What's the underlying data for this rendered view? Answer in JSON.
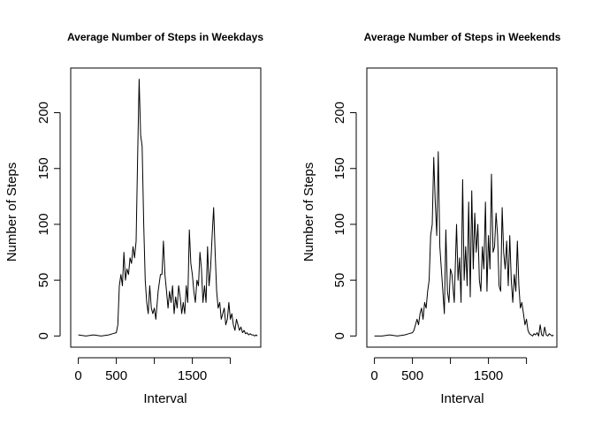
{
  "chart_data": [
    {
      "type": "line",
      "title": "Average Number of Steps in Weekdays",
      "xlabel": "Interval",
      "ylabel": "Number of Steps",
      "xlim": [
        -100,
        2400
      ],
      "ylim": [
        -10,
        240
      ],
      "xticks": [
        0,
        500,
        1500
      ],
      "yticks": [
        0,
        50,
        100,
        150,
        200
      ],
      "x": [
        0,
        100,
        200,
        300,
        400,
        450,
        500,
        520,
        540,
        560,
        580,
        600,
        620,
        640,
        660,
        680,
        700,
        720,
        740,
        760,
        780,
        800,
        820,
        840,
        860,
        880,
        900,
        920,
        940,
        960,
        980,
        1000,
        1020,
        1050,
        1080,
        1100,
        1120,
        1140,
        1160,
        1180,
        1200,
        1220,
        1240,
        1260,
        1280,
        1300,
        1320,
        1340,
        1360,
        1380,
        1400,
        1420,
        1440,
        1460,
        1480,
        1500,
        1520,
        1540,
        1560,
        1580,
        1600,
        1620,
        1640,
        1660,
        1680,
        1700,
        1720,
        1740,
        1760,
        1780,
        1800,
        1820,
        1840,
        1860,
        1880,
        1900,
        1920,
        1940,
        1960,
        1980,
        2000,
        2020,
        2040,
        2060,
        2080,
        2100,
        2120,
        2140,
        2160,
        2180,
        2200,
        2220,
        2240,
        2260,
        2280,
        2300,
        2320,
        2340,
        2355
      ],
      "y": [
        1,
        0,
        1,
        0,
        1,
        2,
        3,
        10,
        45,
        55,
        45,
        75,
        50,
        60,
        55,
        70,
        65,
        80,
        70,
        85,
        160,
        230,
        180,
        170,
        100,
        50,
        30,
        20,
        45,
        25,
        20,
        25,
        15,
        40,
        55,
        55,
        85,
        55,
        40,
        25,
        40,
        30,
        45,
        20,
        35,
        25,
        45,
        35,
        20,
        30,
        20,
        45,
        30,
        95,
        65,
        55,
        40,
        30,
        50,
        45,
        75,
        60,
        30,
        45,
        30,
        80,
        45,
        60,
        90,
        115,
        75,
        40,
        25,
        30,
        15,
        20,
        25,
        10,
        15,
        30,
        15,
        20,
        10,
        5,
        15,
        10,
        5,
        8,
        3,
        5,
        2,
        3,
        1,
        2,
        1,
        1,
        0,
        1,
        0
      ]
    },
    {
      "type": "line",
      "title": "Average Number of Steps in Weekends",
      "xlabel": "Interval",
      "ylabel": "Number of Steps",
      "xlim": [
        -100,
        2400
      ],
      "ylim": [
        -10,
        240
      ],
      "xticks": [
        0,
        500,
        1500
      ],
      "yticks": [
        0,
        50,
        100,
        150,
        200
      ],
      "x": [
        0,
        100,
        200,
        300,
        400,
        450,
        500,
        520,
        540,
        560,
        580,
        600,
        620,
        640,
        660,
        680,
        700,
        720,
        740,
        760,
        780,
        800,
        820,
        840,
        860,
        880,
        900,
        920,
        940,
        960,
        980,
        1000,
        1020,
        1050,
        1080,
        1100,
        1120,
        1140,
        1160,
        1180,
        1200,
        1220,
        1240,
        1260,
        1280,
        1300,
        1320,
        1340,
        1360,
        1380,
        1400,
        1420,
        1440,
        1460,
        1480,
        1500,
        1520,
        1540,
        1560,
        1580,
        1600,
        1620,
        1640,
        1660,
        1680,
        1700,
        1720,
        1740,
        1760,
        1780,
        1800,
        1820,
        1840,
        1860,
        1880,
        1900,
        1920,
        1940,
        1960,
        1980,
        2000,
        2020,
        2040,
        2060,
        2080,
        2100,
        2120,
        2140,
        2160,
        2180,
        2200,
        2220,
        2240,
        2260,
        2280,
        2300,
        2320,
        2340,
        2355
      ],
      "y": [
        0,
        0,
        1,
        0,
        1,
        2,
        3,
        5,
        10,
        15,
        10,
        20,
        25,
        15,
        30,
        25,
        40,
        50,
        90,
        100,
        160,
        120,
        90,
        165,
        80,
        60,
        40,
        20,
        95,
        40,
        30,
        60,
        55,
        30,
        100,
        50,
        70,
        30,
        140,
        50,
        80,
        45,
        120,
        35,
        130,
        60,
        110,
        75,
        100,
        50,
        40,
        80,
        60,
        120,
        40,
        90,
        60,
        145,
        75,
        80,
        110,
        90,
        45,
        40,
        115,
        75,
        60,
        85,
        45,
        90,
        50,
        30,
        55,
        40,
        85,
        45,
        25,
        30,
        20,
        10,
        15,
        5,
        2,
        1,
        0,
        2,
        1,
        3,
        0,
        10,
        1,
        0,
        8,
        1,
        0,
        2,
        1,
        0,
        1
      ]
    }
  ]
}
